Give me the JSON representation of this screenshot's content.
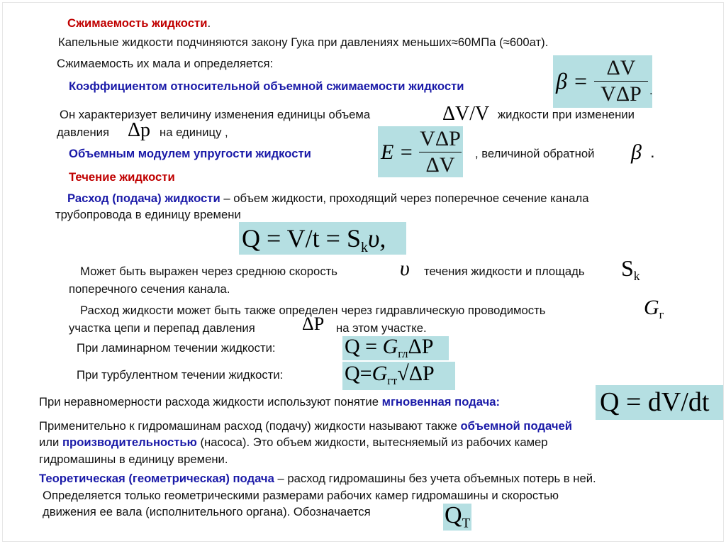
{
  "colors": {
    "heading": "#c00000",
    "term": "#1a1aa8",
    "formula_bg": "#b5dfe2"
  },
  "title": "Сжимаемость жидкости",
  "title_period": ".",
  "l1": "Капельные жидкости подчиняются закону Гука при давлениях меньших≈60МПа (≈600ат).",
  "l2": "Сжимаемость их мала и определяется:",
  "l3": "Коэффициентом относительной объемной сжимаемости жидкости",
  "f_beta": {
    "lhs": "β =",
    "num": "ΔV",
    "den": "VΔP",
    "after": "."
  },
  "l4a": "Он характеризует величину изменения единицы объема",
  "f_dvv": "ΔV/V",
  "l4b": "жидкости при  изменении",
  "l5a": "давления",
  "f_dp": "Δp",
  "l5b": "на единицу ,",
  "l6": "Объемным модулем упругости  жидкости",
  "f_E": {
    "lhs": "E =",
    "num": "VΔP",
    "den": "ΔV"
  },
  "l6b": ", величиной обратной",
  "f_beta2": "β",
  "l6c": ".",
  "h2": "Течение жидкости",
  "l7a": "Расход (подача) жидкости",
  "l7b": " – объем жидкости, проходящий через поперечное сечение канала",
  "l8": "трубопровода в единицу времени",
  "f_Q": "Q = V/t = S",
  "f_Q_sub": "k",
  "f_Q_tail": "υ,",
  "l9a": "Может быть выражен через среднюю скорость",
  "f_v": "υ",
  "l9b": "течения жидкости и площадь",
  "f_Sk": "S",
  "f_Sk_sub": "k",
  "l10": "поперечного сечения канала.",
  "l11": "Расход жидкости может быть также определен через гидравлическую проводимость",
  "f_G": "G",
  "f_G_sub": "г",
  "l12a": "участка цепи и перепад давления",
  "f_dP": "ΔP",
  "l12b": "на этом участке.",
  "l13": "При ламинарном течении жидкости:",
  "f_lam": {
    "a": "Q = ",
    "g": "G",
    "sub": "гл",
    "b": "ΔP"
  },
  "l14": "При турбулентном течении жидкости:",
  "f_turb": {
    "a": "Q=",
    "g": "G",
    "sub": "гт",
    "b": "√ΔP"
  },
  "l15a": "При неравномерности расхода жидкости используют понятие ",
  "l15b": "мгновенная подача:",
  "f_inst": "Q = dV/dt",
  "l16a": "Применительно к гидромашинам расход (подачу) жидкости называют также ",
  "l16b": "объемной подачей",
  "l17a": "или ",
  "l17b": "производительностью",
  "l17c": " (насоса). Это объем жидкости, вытесняемый из рабочих камер",
  "l18": "гидромашины в единицу времени.",
  "l19a": "Теоретическая (геометрическая) подача",
  "l19b": " – расход гидромашины без учета объемных потерь в ней.",
  "l20": "Определяется только геометрическими размерами рабочих камер гидромашины и скоростью",
  "l21": "движения ее вала (исполнительного органа). Обозначается",
  "f_QT": "Q",
  "f_QT_sub": "T"
}
